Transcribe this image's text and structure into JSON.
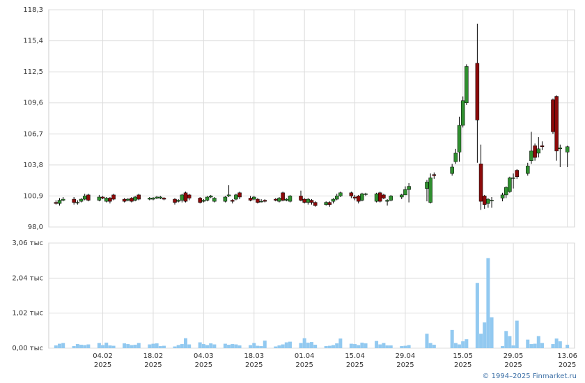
{
  "chart_data": {
    "type": "candlestick",
    "x": [
      "2025-01-22",
      "2025-01-23",
      "2025-01-24",
      "2025-01-27",
      "2025-01-28",
      "2025-01-29",
      "2025-01-30",
      "2025-01-31",
      "2025-02-03",
      "2025-02-04",
      "2025-02-05",
      "2025-02-06",
      "2025-02-07",
      "2025-02-10",
      "2025-02-11",
      "2025-02-12",
      "2025-02-13",
      "2025-02-14",
      "2025-02-17",
      "2025-02-18",
      "2025-02-19",
      "2025-02-20",
      "2025-02-21",
      "2025-02-24",
      "2025-02-25",
      "2025-02-26",
      "2025-02-27",
      "2025-02-28",
      "2025-03-03",
      "2025-03-04",
      "2025-03-05",
      "2025-03-06",
      "2025-03-07",
      "2025-03-10",
      "2025-03-11",
      "2025-03-12",
      "2025-03-13",
      "2025-03-14",
      "2025-03-17",
      "2025-03-18",
      "2025-03-19",
      "2025-03-20",
      "2025-03-21",
      "2025-03-24",
      "2025-03-25",
      "2025-03-26",
      "2025-03-27",
      "2025-03-28",
      "2025-03-31",
      "2025-04-01",
      "2025-04-02",
      "2025-04-03",
      "2025-04-04",
      "2025-04-07",
      "2025-04-08",
      "2025-04-09",
      "2025-04-10",
      "2025-04-11",
      "2025-04-14",
      "2025-04-15",
      "2025-04-16",
      "2025-04-17",
      "2025-04-18",
      "2025-04-21",
      "2025-04-22",
      "2025-04-23",
      "2025-04-24",
      "2025-04-25",
      "2025-04-28",
      "2025-04-29",
      "2025-04-30",
      "2025-05-05",
      "2025-05-06",
      "2025-05-07",
      "2025-05-12",
      "2025-05-13",
      "2025-05-14",
      "2025-05-15",
      "2025-05-16",
      "2025-05-19",
      "2025-05-20",
      "2025-05-21",
      "2025-05-22",
      "2025-05-23",
      "2025-05-26",
      "2025-05-27",
      "2025-05-28",
      "2025-05-29",
      "2025-05-30",
      "2025-06-02",
      "2025-06-03",
      "2025-06-04",
      "2025-06-05",
      "2025-06-06",
      "2025-06-09",
      "2025-06-10",
      "2025-06-11",
      "2025-06-13"
    ],
    "open": [
      100.3,
      100.2,
      100.5,
      100.6,
      100.3,
      100.4,
      100.6,
      101.0,
      100.5,
      100.8,
      100.4,
      100.7,
      101.0,
      100.6,
      100.5,
      100.7,
      100.5,
      101.0,
      100.6,
      100.6,
      100.7,
      100.7,
      100.7,
      100.6,
      100.4,
      100.5,
      101.2,
      101.0,
      100.7,
      100.4,
      100.5,
      100.8,
      100.4,
      100.4,
      100.9,
      100.5,
      100.6,
      101.2,
      100.7,
      100.6,
      100.6,
      100.4,
      100.5,
      100.6,
      100.4,
      101.2,
      100.5,
      100.4,
      100.9,
      100.6,
      100.3,
      100.5,
      100.3,
      100.1,
      100.3,
      100.4,
      100.6,
      100.9,
      101.2,
      100.8,
      100.9,
      100.5,
      101.1,
      100.4,
      101.2,
      101.0,
      100.4,
      100.5,
      100.8,
      101.0,
      101.5,
      101.6,
      100.3,
      102.9,
      103.0,
      104.1,
      105.0,
      107.5,
      109.6,
      113.3,
      103.9,
      100.9,
      100.2,
      100.5,
      100.7,
      101.0,
      101.3,
      102.6,
      103.3,
      103.0,
      104.2,
      105.6,
      104.9,
      105.6,
      109.9,
      110.2,
      105.3,
      105.0
    ],
    "high": [
      100.5,
      100.7,
      100.8,
      100.8,
      100.5,
      100.7,
      101.1,
      101.1,
      101.0,
      100.9,
      100.8,
      100.8,
      101.1,
      100.7,
      100.7,
      100.8,
      100.9,
      101.1,
      100.8,
      100.8,
      100.9,
      100.9,
      100.8,
      100.7,
      100.6,
      101.1,
      101.3,
      101.1,
      100.8,
      100.6,
      100.9,
      101.0,
      100.8,
      100.9,
      101.9,
      100.6,
      101.1,
      101.3,
      100.9,
      100.9,
      100.7,
      100.6,
      100.6,
      100.7,
      100.8,
      101.3,
      100.7,
      101.0,
      101.4,
      100.7,
      100.7,
      100.6,
      100.4,
      100.4,
      100.4,
      100.7,
      101.1,
      101.3,
      101.3,
      101.0,
      101.0,
      101.2,
      101.2,
      101.2,
      101.3,
      101.1,
      100.6,
      101.0,
      101.1,
      101.8,
      102.1,
      102.4,
      103.0,
      103.1,
      103.9,
      105.3,
      108.3,
      110.2,
      113.2,
      117.0,
      105.7,
      101.0,
      100.7,
      100.8,
      101.2,
      101.8,
      102.7,
      103.0,
      103.4,
      104.0,
      106.9,
      105.8,
      106.4,
      106.0,
      110.0,
      110.3,
      105.7,
      105.6
    ],
    "low": [
      100.1,
      100.0,
      100.4,
      100.1,
      100.1,
      100.3,
      100.5,
      100.4,
      100.4,
      100.6,
      100.3,
      100.2,
      100.5,
      100.3,
      100.4,
      100.3,
      100.4,
      100.5,
      100.5,
      100.5,
      100.6,
      100.6,
      100.5,
      100.1,
      100.3,
      100.3,
      100.3,
      100.5,
      100.2,
      100.3,
      100.4,
      100.7,
      100.3,
      100.3,
      100.8,
      100.2,
      100.5,
      100.6,
      100.4,
      100.5,
      100.2,
      100.3,
      100.3,
      100.4,
      100.3,
      100.4,
      100.4,
      100.3,
      100.4,
      100.2,
      100.1,
      100.1,
      99.9,
      100.0,
      99.9,
      100.2,
      100.5,
      100.8,
      100.7,
      100.5,
      100.2,
      100.4,
      100.9,
      100.3,
      100.3,
      100.6,
      100.0,
      100.4,
      100.6,
      101.0,
      100.3,
      100.4,
      100.2,
      102.5,
      102.8,
      103.9,
      104.1,
      107.3,
      109.4,
      104.0,
      99.6,
      99.7,
      99.8,
      99.8,
      100.4,
      100.7,
      101.2,
      101.6,
      102.5,
      102.8,
      103.9,
      104.2,
      104.5,
      105.2,
      106.7,
      104.2,
      103.6,
      103.6
    ],
    "close": [
      100.2,
      100.5,
      100.6,
      100.3,
      100.3,
      100.6,
      100.9,
      100.5,
      100.8,
      100.7,
      100.7,
      100.4,
      100.6,
      100.4,
      100.6,
      100.4,
      100.8,
      100.6,
      100.7,
      100.7,
      100.8,
      100.8,
      100.6,
      100.3,
      100.5,
      101.0,
      100.4,
      100.7,
      100.3,
      100.5,
      100.8,
      100.9,
      100.7,
      100.8,
      101.0,
      100.4,
      101.0,
      100.8,
      100.5,
      100.8,
      100.3,
      100.4,
      100.4,
      100.5,
      100.7,
      100.5,
      100.6,
      100.9,
      100.5,
      100.3,
      100.6,
      100.3,
      100.0,
      100.3,
      100.1,
      100.6,
      100.9,
      101.2,
      100.9,
      100.7,
      100.4,
      101.1,
      101.1,
      101.1,
      100.4,
      100.7,
      100.5,
      100.9,
      101.0,
      101.5,
      101.8,
      102.2,
      102.6,
      102.8,
      103.6,
      104.9,
      107.5,
      109.8,
      113.0,
      108.0,
      100.4,
      100.1,
      100.6,
      100.5,
      101.0,
      101.7,
      102.6,
      102.6,
      102.7,
      103.7,
      105.1,
      104.5,
      105.3,
      105.5,
      106.9,
      105.1,
      105.4,
      105.5
    ],
    "volume": [
      80,
      130,
      150,
      60,
      120,
      100,
      90,
      110,
      150,
      90,
      160,
      80,
      70,
      140,
      120,
      90,
      100,
      150,
      110,
      130,
      140,
      60,
      70,
      50,
      90,
      120,
      290,
      110,
      170,
      120,
      90,
      140,
      110,
      130,
      100,
      120,
      110,
      80,
      90,
      150,
      70,
      60,
      220,
      50,
      80,
      110,
      170,
      190,
      150,
      290,
      160,
      180,
      100,
      60,
      70,
      90,
      140,
      280,
      130,
      120,
      90,
      160,
      140,
      210,
      110,
      150,
      80,
      80,
      60,
      70,
      90,
      420,
      150,
      100,
      530,
      150,
      110,
      200,
      260,
      1900,
      420,
      750,
      2620,
      900,
      60,
      500,
      350,
      80,
      800,
      250,
      120,
      130,
      350,
      150,
      120,
      280,
      200,
      100
    ],
    "up_color": "#2f8f2f",
    "down_color": "#8b0a0a",
    "volume_color": "#92c9f0",
    "xlim": [
      "2025-01-20",
      "2025-06-15"
    ],
    "xticks": [
      {
        "value": "2025-02-04",
        "label": "04.02\n2025"
      },
      {
        "value": "2025-02-18",
        "label": "18.02\n2025"
      },
      {
        "value": "2025-03-04",
        "label": "04.03\n2025"
      },
      {
        "value": "2025-03-18",
        "label": "18.03\n2025"
      },
      {
        "value": "2025-04-01",
        "label": "01.04\n2025"
      },
      {
        "value": "2025-04-15",
        "label": "15.04\n2025"
      },
      {
        "value": "2025-04-29",
        "label": "29.04\n2025"
      },
      {
        "value": "2025-05-15",
        "label": "15.05\n2025"
      },
      {
        "value": "2025-05-29",
        "label": "29.05\n2025"
      },
      {
        "value": "2025-06-13",
        "label": "13.06\n2025"
      }
    ],
    "ylim": [
      98.0,
      118.3
    ],
    "yticks": [
      {
        "value": 98.0,
        "label": "98,0"
      },
      {
        "value": 100.9,
        "label": "100,9"
      },
      {
        "value": 103.8,
        "label": "103,8"
      },
      {
        "value": 106.7,
        "label": "106,7"
      },
      {
        "value": 109.6,
        "label": "109,6"
      },
      {
        "value": 112.5,
        "label": "112,5"
      },
      {
        "value": 115.4,
        "label": "115,4"
      },
      {
        "value": 118.3,
        "label": "118,3"
      }
    ],
    "volume_lim": [
      0,
      3060
    ],
    "volume_ticks": [
      {
        "value": 0,
        "label": "0,00 тыс"
      },
      {
        "value": 1020,
        "label": "1,02 тыс"
      },
      {
        "value": 2040,
        "label": "2,04 тыс"
      },
      {
        "value": 3060,
        "label": "3,06 тыс"
      }
    ],
    "grid": true,
    "footer": "© 1994–2025 Finmarket.ru"
  }
}
